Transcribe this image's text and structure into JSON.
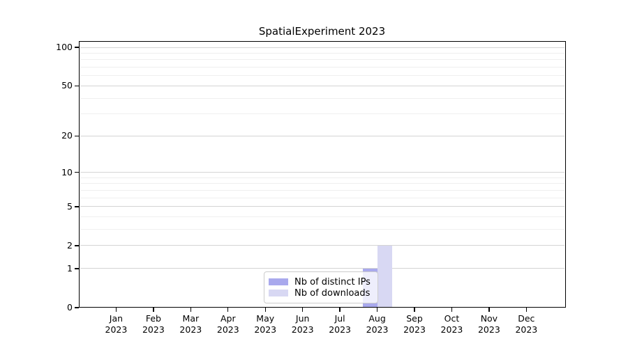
{
  "chart_data": {
    "type": "bar",
    "title": "SpatialExperiment 2023",
    "scale": "log1p",
    "categories": [
      "Jan 2023",
      "Feb 2023",
      "Mar 2023",
      "Apr 2023",
      "May 2023",
      "Jun 2023",
      "Jul 2023",
      "Aug 2023",
      "Sep 2023",
      "Oct 2023",
      "Nov 2023",
      "Dec 2023"
    ],
    "series": [
      {
        "name": "Nb of distinct IPs",
        "color": "#a9a9ed",
        "values": [
          0,
          0,
          0,
          0,
          0,
          0,
          0,
          1,
          0,
          0,
          0,
          0
        ]
      },
      {
        "name": "Nb of downloads",
        "color": "#d8d8f3",
        "values": [
          0,
          0,
          0,
          0,
          0,
          0,
          0,
          2,
          0,
          0,
          0,
          0
        ]
      }
    ],
    "xlabel": "",
    "ylabel": "",
    "y_major_ticks": [
      0,
      1,
      2,
      5,
      10,
      20,
      50,
      100
    ],
    "y_minor_gridlines": [
      3,
      4,
      6,
      7,
      8,
      9,
      30,
      40,
      60,
      70,
      80,
      90
    ],
    "ylim": [
      0,
      112
    ],
    "grid": "horizontal",
    "legend_position": "lower center"
  },
  "colors": {
    "major_grid": "#d4d4d4",
    "minor_grid": "#efefef",
    "axis": "#000000",
    "background": "#ffffff"
  }
}
